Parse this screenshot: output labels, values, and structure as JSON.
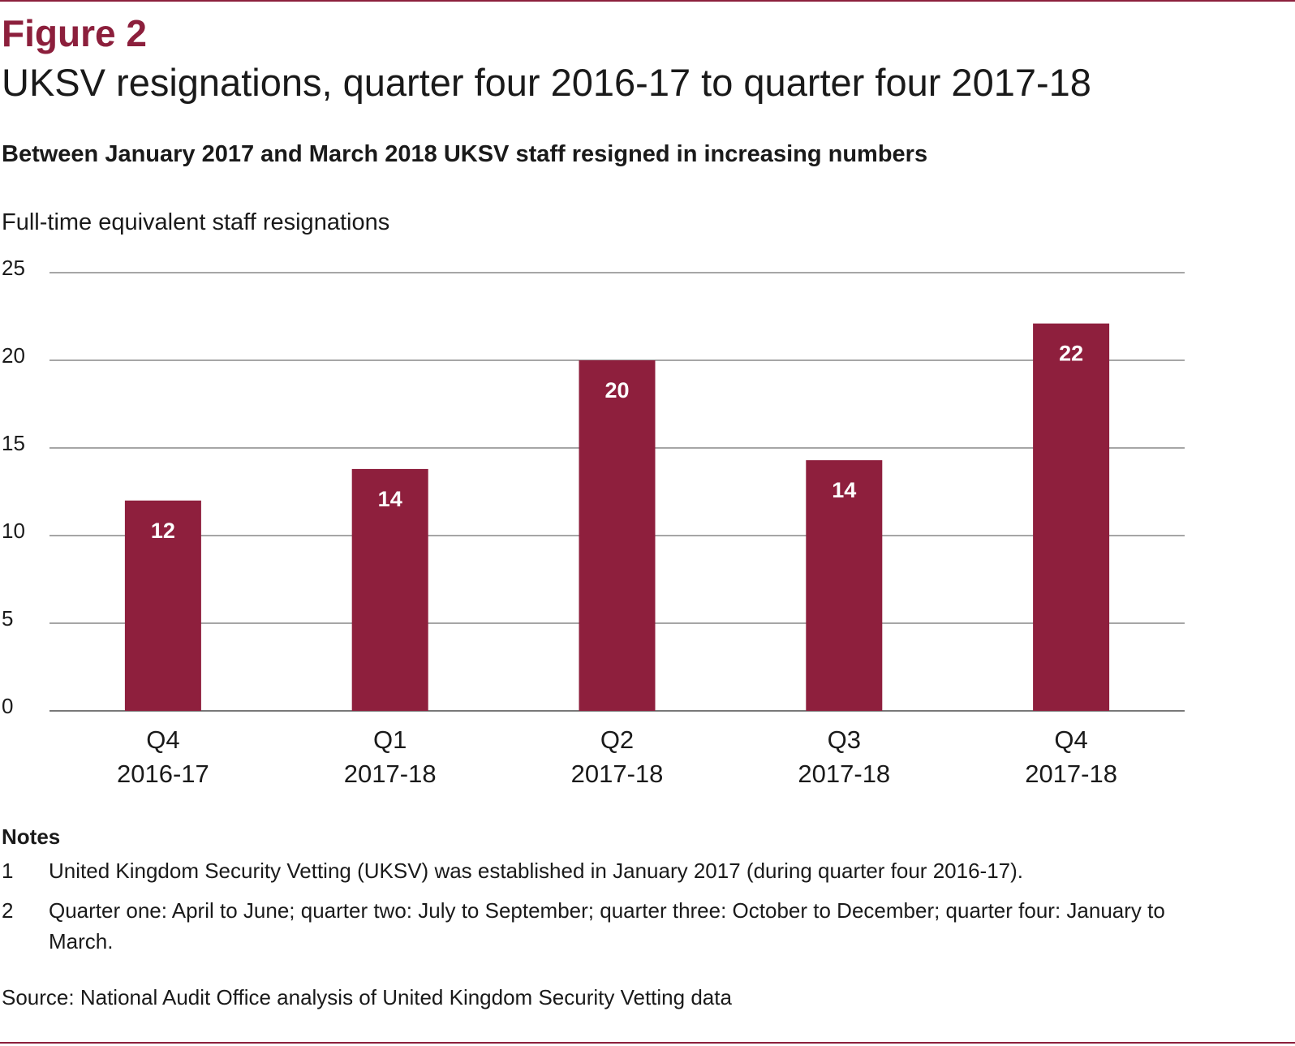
{
  "figure": {
    "label": "Figure 2",
    "title": "UKSV resignations, quarter four 2016-17 to quarter four 2017-18",
    "subtitle": "Between January 2017 and March 2018 UKSV staff resigned in increasing numbers"
  },
  "colors": {
    "accent": "#8c1f3c",
    "bar": "#8e1f3d",
    "gridline": "#4d4d4d",
    "bar_label": "#ffffff"
  },
  "chart_data": {
    "type": "bar",
    "ylabel": "Full-time equivalent staff resignations",
    "ylim": [
      0,
      25
    ],
    "yticks": [
      0,
      5,
      10,
      15,
      20,
      25
    ],
    "grid": true,
    "categories": [
      [
        "Q4",
        "2016-17"
      ],
      [
        "Q1",
        "2017-18"
      ],
      [
        "Q2",
        "2017-18"
      ],
      [
        "Q3",
        "2017-18"
      ],
      [
        "Q4",
        "2017-18"
      ]
    ],
    "values": [
      12,
      13.8,
      20,
      14.3,
      22.1
    ],
    "data_labels": [
      "12",
      "14",
      "20",
      "14",
      "22"
    ]
  },
  "notes": {
    "heading": "Notes",
    "items": [
      {
        "num": "1",
        "text": "United Kingdom Security Vetting (UKSV) was established in January 2017 (during quarter four 2016-17)."
      },
      {
        "num": "2",
        "text": "Quarter one: April to June; quarter two: July to September; quarter three: October to December; quarter four: January to March."
      }
    ]
  },
  "source": "Source: National Audit Office analysis of United Kingdom Security Vetting data"
}
